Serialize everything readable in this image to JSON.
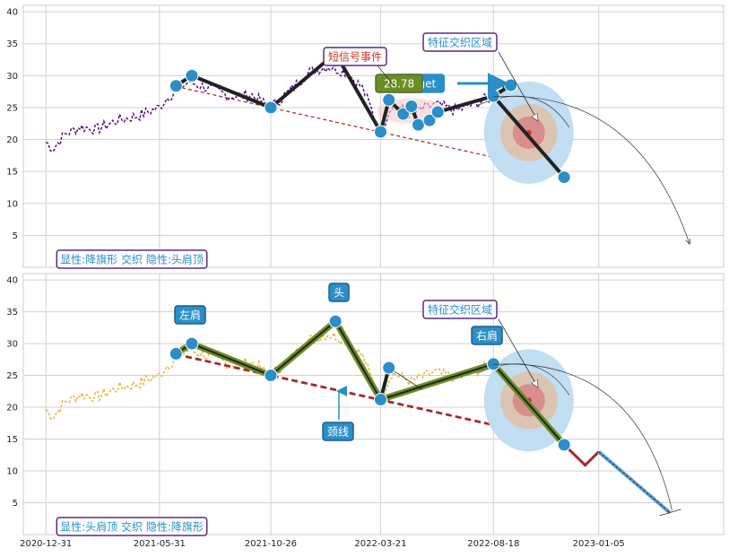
{
  "chart_data": [
    {
      "type": "line",
      "panel": "top",
      "x_tick_labels": [
        "2020-12-31",
        "2021-05-31",
        "2021-10-26",
        "2022-03-21",
        "2022-08-18",
        "2023-01-05"
      ],
      "x_tick_dates": [
        "2020-12-31",
        "2021-05-31",
        "2021-10-26",
        "2022-03-21",
        "2022-08-18",
        "2023-01-05"
      ],
      "xlim": [
        "2020-12-01",
        "2023-06-20"
      ],
      "ylim": [
        0,
        41
      ],
      "y_ticks": [
        5,
        10,
        15,
        20,
        25,
        30,
        35,
        40
      ],
      "grid": true,
      "price_color": "#4b0082",
      "price_style": "dashed",
      "price_anchors": [
        [
          "2020-12-31",
          19.6
        ],
        [
          "2021-01-10",
          18.6
        ],
        [
          "2021-01-25",
          20.8
        ],
        [
          "2021-02-15",
          22.0
        ],
        [
          "2021-03-10",
          21.6
        ],
        [
          "2021-04-05",
          23.0
        ],
        [
          "2021-05-05",
          23.8
        ],
        [
          "2021-05-31",
          25.0
        ],
        [
          "2021-06-10",
          26.5
        ],
        [
          "2021-07-01",
          28.5
        ],
        [
          "2021-07-10",
          29.0
        ],
        [
          "2021-08-05",
          28.0
        ],
        [
          "2021-09-01",
          26.8
        ],
        [
          "2021-10-01",
          27.0
        ],
        [
          "2021-10-26",
          25.0
        ],
        [
          "2021-11-20",
          27.5
        ],
        [
          "2021-12-15",
          30.5
        ],
        [
          "2022-01-10",
          31.5
        ],
        [
          "2022-02-05",
          30.5
        ],
        [
          "2022-02-25",
          28.0
        ],
        [
          "2022-03-21",
          21.2
        ],
        [
          "2022-04-05",
          25.5
        ],
        [
          "2022-05-01",
          24.0
        ],
        [
          "2022-06-01",
          25.5
        ],
        [
          "2022-07-01",
          24.5
        ],
        [
          "2022-08-18",
          26.8
        ],
        [
          "2022-09-10",
          28.5
        ]
      ],
      "pattern_path": [
        [
          "2021-06-22",
          28.4
        ],
        [
          "2021-07-13",
          30.0
        ],
        [
          "2021-10-26",
          25.0
        ],
        [
          "2022-01-20",
          33.5
        ],
        [
          "2022-03-21",
          21.2
        ],
        [
          "2022-04-01",
          26.2
        ],
        [
          "2022-04-20",
          24.0
        ],
        [
          "2022-05-01",
          25.2
        ],
        [
          "2022-05-10",
          22.3
        ],
        [
          "2022-05-25",
          23.0
        ],
        [
          "2022-06-05",
          24.3
        ],
        [
          "2022-08-18",
          26.8
        ],
        [
          "2022-09-10",
          28.5
        ]
      ],
      "forecast_path": [
        [
          "2022-08-18",
          26.8
        ],
        [
          "2022-11-20",
          14.1
        ]
      ],
      "pattern_points": [
        [
          "2021-06-22",
          28.4
        ],
        [
          "2021-07-13",
          30.0
        ],
        [
          "2021-10-26",
          25.0
        ],
        [
          "2022-03-21",
          21.2
        ],
        [
          "2022-04-01",
          26.2
        ],
        [
          "2022-04-20",
          24.0
        ],
        [
          "2022-05-01",
          25.2
        ],
        [
          "2022-05-10",
          22.3
        ],
        [
          "2022-05-25",
          23.0
        ],
        [
          "2022-06-05",
          24.3
        ],
        [
          "2022-08-18",
          26.8
        ],
        [
          "2022-09-10",
          28.5
        ],
        [
          "2022-11-20",
          14.1
        ]
      ],
      "neckline": [
        [
          "2021-06-22",
          28.3
        ],
        [
          "2022-08-15",
          17.3
        ]
      ],
      "target_label": "28.78",
      "target_arrow_label": "target",
      "annotations": {
        "short_signal": "短信号事件",
        "feature_zone": "特征交织区域",
        "bottom_label": "显性:降旗形 交织 隐性:头肩顶"
      },
      "zone_center": [
        "2022-10-10",
        21.5
      ]
    },
    {
      "type": "line",
      "panel": "bottom",
      "x_tick_labels": [
        "2020-12-31",
        "2021-05-31",
        "2021-10-26",
        "2022-03-21",
        "2022-08-18",
        "2023-01-05"
      ],
      "x_tick_dates": [
        "2020-12-31",
        "2021-05-31",
        "2021-10-26",
        "2022-03-21",
        "2022-08-18",
        "2023-01-05"
      ],
      "xlim": [
        "2020-12-01",
        "2023-06-20"
      ],
      "ylim": [
        0,
        41
      ],
      "y_ticks": [
        5,
        10,
        15,
        20,
        25,
        30,
        35,
        40
      ],
      "grid": true,
      "price_color": "#e6b22e",
      "price_style": "dashed",
      "price_anchors": [
        [
          "2020-12-31",
          19.6
        ],
        [
          "2021-01-10",
          18.6
        ],
        [
          "2021-01-25",
          20.8
        ],
        [
          "2021-02-15",
          22.0
        ],
        [
          "2021-03-10",
          21.6
        ],
        [
          "2021-04-05",
          23.0
        ],
        [
          "2021-05-05",
          23.8
        ],
        [
          "2021-05-31",
          25.0
        ],
        [
          "2021-06-10",
          26.5
        ],
        [
          "2021-07-01",
          28.5
        ],
        [
          "2021-07-10",
          29.0
        ],
        [
          "2021-08-05",
          28.0
        ],
        [
          "2021-09-01",
          26.8
        ],
        [
          "2021-10-01",
          27.0
        ],
        [
          "2021-10-26",
          25.0
        ],
        [
          "2021-11-20",
          27.5
        ],
        [
          "2021-12-15",
          30.5
        ],
        [
          "2022-01-10",
          31.5
        ],
        [
          "2022-02-05",
          30.5
        ],
        [
          "2022-02-25",
          28.0
        ],
        [
          "2022-03-21",
          21.2
        ],
        [
          "2022-04-05",
          25.5
        ],
        [
          "2022-05-01",
          24.0
        ],
        [
          "2022-06-01",
          25.5
        ],
        [
          "2022-07-01",
          24.5
        ],
        [
          "2022-08-18",
          26.8
        ]
      ],
      "pattern_path": [
        [
          "2021-06-22",
          28.4
        ],
        [
          "2021-07-13",
          30.0
        ],
        [
          "2021-10-26",
          25.0
        ],
        [
          "2022-01-20",
          33.5
        ],
        [
          "2022-03-21",
          21.2
        ],
        [
          "2022-08-18",
          26.8
        ],
        [
          "2022-11-20",
          14.1
        ]
      ],
      "flag_segment": [
        [
          "2022-03-21",
          21.2
        ],
        [
          "2022-04-01",
          26.2
        ]
      ],
      "pattern_points": [
        [
          "2021-06-22",
          28.4
        ],
        [
          "2021-07-13",
          30.0
        ],
        [
          "2021-10-26",
          25.0
        ],
        [
          "2022-01-20",
          33.5
        ],
        [
          "2022-03-21",
          21.2
        ],
        [
          "2022-04-01",
          26.2
        ],
        [
          "2022-08-18",
          26.8
        ],
        [
          "2022-11-20",
          14.1
        ]
      ],
      "neckline": [
        [
          "2021-06-22",
          28.3
        ],
        [
          "2022-08-15",
          17.3
        ]
      ],
      "projection_red": [
        [
          "2022-11-20",
          14.1
        ],
        [
          "2022-12-18",
          10.9
        ],
        [
          "2023-01-05",
          13.0
        ]
      ],
      "projection_blue": [
        [
          "2023-01-05",
          13.0
        ],
        [
          "2023-04-10",
          3.4
        ]
      ],
      "annotations": {
        "left_shoulder": "左肩",
        "head": "头",
        "right_shoulder": "右肩",
        "neckline": "颈线",
        "feature_zone": "特征交织区域",
        "bottom_label": "显性:头肩顶 交织 隐性:降旗形"
      },
      "zone_center": [
        "2022-10-10",
        21.5
      ]
    }
  ]
}
